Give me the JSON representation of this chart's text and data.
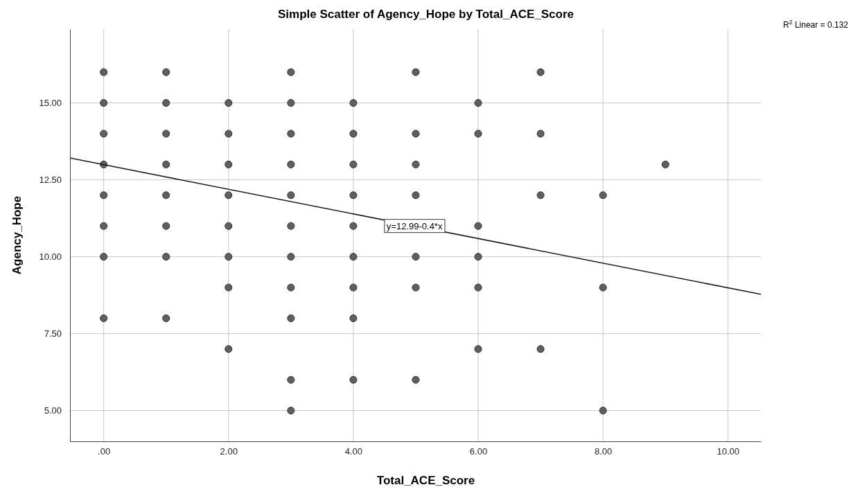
{
  "chart_data": {
    "type": "scatter",
    "title": "Simple Scatter of Agency_Hope by Total_ACE_Score",
    "xlabel": "Total_ACE_Score",
    "ylabel": "Agency_Hope",
    "series": [
      {
        "color": "#5f5f5f",
        "x": [
          0,
          0,
          0,
          0,
          0,
          0,
          0,
          0,
          1,
          1,
          1,
          1,
          1,
          1,
          1,
          1,
          2,
          2,
          2,
          2,
          2,
          2,
          2,
          2,
          3,
          3,
          3,
          3,
          3,
          3,
          3,
          3,
          3,
          3,
          3,
          4,
          4,
          4,
          4,
          4,
          4,
          4,
          4,
          4,
          5,
          5,
          5,
          5,
          5,
          5,
          5,
          6,
          6,
          6,
          6,
          6,
          6,
          7,
          7,
          7,
          7,
          8,
          8,
          8,
          9
        ],
        "values": [
          16,
          15,
          14,
          13,
          12,
          11,
          10,
          8,
          16,
          15,
          14,
          13,
          12,
          11,
          10,
          8,
          15,
          14,
          13,
          12,
          11,
          10,
          9,
          7,
          16,
          15,
          14,
          13,
          12,
          11,
          10,
          9,
          8,
          6,
          5,
          15,
          14,
          13,
          12,
          11,
          10,
          9,
          8,
          6,
          16,
          14,
          13,
          12,
          10,
          9,
          6,
          15,
          14,
          11,
          10,
          9,
          7,
          16,
          14,
          12,
          7,
          12,
          9,
          5,
          13
        ]
      },
      {
        "type": "line",
        "marker": "none",
        "color": "#1a1a1a",
        "x": [
          -0.54,
          10.53
        ],
        "values": [
          13.21,
          8.78
        ]
      }
    ],
    "xlim": [
      -0.54,
      10.53
    ],
    "ylim": [
      4.0,
      17.4
    ],
    "xticks": [
      {
        "value": 0,
        "label": ".00"
      },
      {
        "value": 2,
        "label": "2.00"
      },
      {
        "value": 4,
        "label": "4.00"
      },
      {
        "value": 6,
        "label": "6.00"
      },
      {
        "value": 8,
        "label": "8.00"
      },
      {
        "value": 10,
        "label": "10.00"
      }
    ],
    "yticks": [
      {
        "value": 5,
        "label": "5.00"
      },
      {
        "value": 7.5,
        "label": "7.50"
      },
      {
        "value": 10,
        "label": "10.00"
      },
      {
        "value": 12.5,
        "label": "12.50"
      },
      {
        "value": 15,
        "label": "15.00"
      }
    ],
    "grid": true,
    "marker": "circle",
    "annotations": [
      {
        "text": "y=12.99-0.4*x",
        "x": 4.98,
        "y": 11.0
      },
      "R$^{2}$ Linear = 0.132"
    ]
  }
}
